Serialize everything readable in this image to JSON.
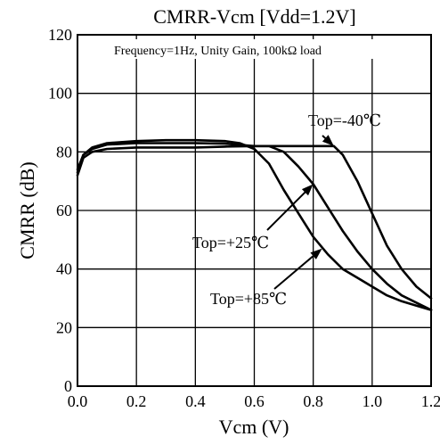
{
  "chart_data": {
    "type": "line",
    "title": "CMRR-Vcm [Vdd=1.2V]",
    "subtitle": "Frequency=1Hz, Unity Gain, 100kΩ load",
    "xlabel": "Vcm (V)",
    "ylabel": "CMRR (dB)",
    "xlim": [
      0,
      1.2
    ],
    "ylim": [
      0,
      120
    ],
    "x_ticks": [
      "0.0",
      "0.2",
      "0.4",
      "0.6",
      "0.8",
      "1.0",
      "1.2"
    ],
    "y_ticks": [
      "0",
      "20",
      "40",
      "60",
      "80",
      "100",
      "120"
    ],
    "grid": true,
    "series": [
      {
        "name": "Top=-40℃",
        "points": [
          [
            0.0,
            72
          ],
          [
            0.02,
            78
          ],
          [
            0.05,
            80
          ],
          [
            0.1,
            81
          ],
          [
            0.2,
            81.5
          ],
          [
            0.3,
            81.5
          ],
          [
            0.4,
            81.5
          ],
          [
            0.5,
            81.8
          ],
          [
            0.6,
            82
          ],
          [
            0.7,
            82
          ],
          [
            0.8,
            82
          ],
          [
            0.87,
            82
          ],
          [
            0.9,
            79
          ],
          [
            0.95,
            70
          ],
          [
            1.0,
            59
          ],
          [
            1.05,
            48
          ],
          [
            1.1,
            40
          ],
          [
            1.15,
            34
          ],
          [
            1.2,
            30
          ]
        ]
      },
      {
        "name": "Top=+25℃",
        "points": [
          [
            0.0,
            74
          ],
          [
            0.02,
            79
          ],
          [
            0.05,
            81
          ],
          [
            0.1,
            82.5
          ],
          [
            0.2,
            83
          ],
          [
            0.3,
            83
          ],
          [
            0.4,
            83
          ],
          [
            0.5,
            82.8
          ],
          [
            0.6,
            82
          ],
          [
            0.65,
            82
          ],
          [
            0.7,
            80
          ],
          [
            0.75,
            75
          ],
          [
            0.8,
            69
          ],
          [
            0.85,
            61
          ],
          [
            0.9,
            53
          ],
          [
            0.95,
            46
          ],
          [
            1.0,
            40
          ],
          [
            1.05,
            35
          ],
          [
            1.1,
            31
          ],
          [
            1.15,
            28.5
          ],
          [
            1.2,
            26
          ]
        ]
      },
      {
        "name": "Top=+85℃",
        "points": [
          [
            0.0,
            73
          ],
          [
            0.02,
            79
          ],
          [
            0.05,
            81.5
          ],
          [
            0.1,
            83
          ],
          [
            0.2,
            83.7
          ],
          [
            0.3,
            84
          ],
          [
            0.4,
            84
          ],
          [
            0.5,
            83.7
          ],
          [
            0.55,
            83
          ],
          [
            0.6,
            81
          ],
          [
            0.65,
            76
          ],
          [
            0.7,
            67
          ],
          [
            0.75,
            59
          ],
          [
            0.8,
            51
          ],
          [
            0.85,
            45
          ],
          [
            0.9,
            40
          ],
          [
            0.95,
            37
          ],
          [
            1.0,
            34
          ],
          [
            1.05,
            31
          ],
          [
            1.1,
            29
          ],
          [
            1.15,
            27.5
          ],
          [
            1.2,
            26
          ]
        ]
      }
    ],
    "annotations": [
      {
        "text": "Top=-40℃",
        "points_to": [
          0.87,
          82
        ]
      },
      {
        "text": "Top=+25℃",
        "points_to": [
          0.8,
          69
        ]
      },
      {
        "text": "Top=+85℃",
        "points_to": [
          0.83,
          47
        ]
      }
    ]
  }
}
